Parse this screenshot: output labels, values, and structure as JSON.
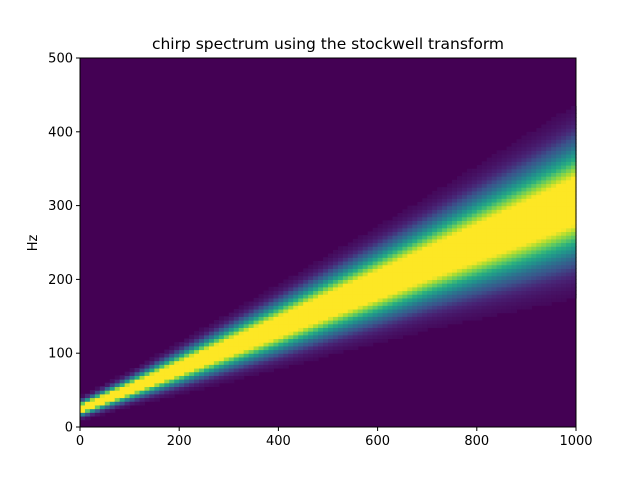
{
  "chart_data": {
    "type": "heatmap",
    "title": "chirp spectrum using the stockwell transform",
    "xlabel": "",
    "ylabel": "Hz",
    "xlim": [
      0,
      1000
    ],
    "ylim": [
      0,
      500
    ],
    "x_ticks": [
      0,
      200,
      400,
      600,
      800,
      1000
    ],
    "y_ticks": [
      0,
      100,
      200,
      300,
      400,
      500
    ],
    "grid": false,
    "colormap": "viridis",
    "background_color": "#440154",
    "peak_color": "#fde725",
    "ridge": {
      "description_points_x": [
        0,
        100,
        200,
        300,
        400,
        500,
        600,
        700,
        800,
        900,
        1000
      ],
      "center_hz": [
        25,
        52,
        80,
        108,
        136,
        165,
        193,
        222,
        250,
        278,
        307
      ],
      "bandwidth_hz": [
        6,
        9,
        13,
        17,
        21,
        25,
        29,
        33,
        38,
        43,
        48
      ]
    }
  }
}
